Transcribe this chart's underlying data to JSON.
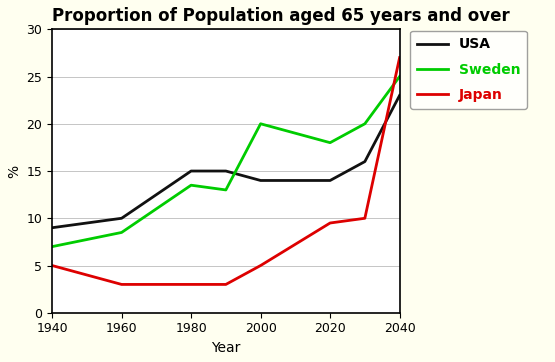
{
  "title": "Proportion of Population aged 65 years and over",
  "xlabel": "Year",
  "ylabel": "%",
  "xlim": [
    1940,
    2040
  ],
  "ylim": [
    0,
    30
  ],
  "xticks": [
    1940,
    1960,
    1980,
    2000,
    2020,
    2040
  ],
  "yticks": [
    0,
    5,
    10,
    15,
    20,
    25,
    30
  ],
  "background_color": "#fffff0",
  "plot_bg": "#ffffff",
  "series": {
    "USA": {
      "x": [
        1940,
        1960,
        1980,
        1990,
        2000,
        2020,
        2030,
        2040
      ],
      "y": [
        9,
        10,
        15,
        15,
        14,
        14,
        16,
        23
      ],
      "color": "#111111",
      "linewidth": 2.0,
      "linestyle": "-"
    },
    "Sweden": {
      "x": [
        1940,
        1960,
        1980,
        1990,
        2000,
        2020,
        2030,
        2040
      ],
      "y": [
        7,
        8.5,
        13.5,
        13,
        20,
        18,
        20,
        25
      ],
      "color": "#00cc00",
      "linewidth": 2.0,
      "linestyle": "-"
    },
    "Japan": {
      "x": [
        1940,
        1960,
        1980,
        1990,
        2000,
        2020,
        2030,
        2040
      ],
      "y": [
        5,
        3,
        3,
        3,
        5,
        9.5,
        10,
        27
      ],
      "color": "#dd0000",
      "linewidth": 2.0,
      "linestyle": "-"
    }
  },
  "legend_labels": [
    "USA",
    "Sweden",
    "Japan"
  ],
  "legend_colors": [
    "#111111",
    "#00cc00",
    "#dd0000"
  ],
  "legend_text_colors": [
    "#000000",
    "#00cc00",
    "#dd0000"
  ],
  "legend_fontsize": 10,
  "title_fontsize": 12,
  "axis_label_fontsize": 10,
  "tick_fontsize": 9
}
